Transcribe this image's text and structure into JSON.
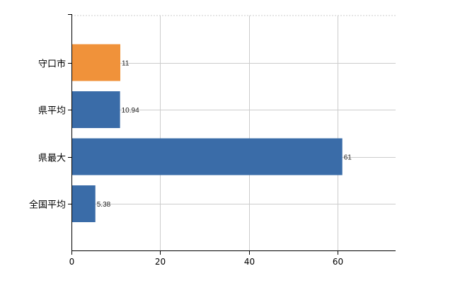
{
  "chart_data": {
    "type": "bar",
    "orientation": "horizontal",
    "categories": [
      "守口市",
      "県平均",
      "県最大",
      "全国平均"
    ],
    "values": [
      11,
      10.94,
      61,
      5.38
    ],
    "data_labels": [
      "11",
      "10.94",
      "61",
      "5.38"
    ],
    "bar_colors": [
      "#f0923a",
      "#3a6ca8",
      "#3a6ca8",
      "#3a6ca8"
    ],
    "xlim": [
      0,
      73
    ],
    "x_ticks": [
      0,
      20,
      40,
      60
    ],
    "x_tick_labels": [
      "0",
      "20",
      "40",
      "60"
    ],
    "grid": true,
    "grid_color": "#cccccc",
    "title": "",
    "xlabel": "",
    "ylabel": ""
  }
}
